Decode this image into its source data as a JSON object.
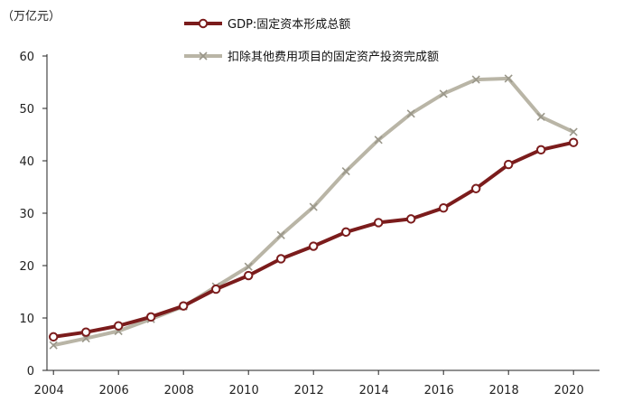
{
  "chart_data": {
    "type": "line",
    "unit_label": "（万亿元）",
    "x": [
      2004,
      2005,
      2006,
      2007,
      2008,
      2009,
      2010,
      2011,
      2012,
      2013,
      2014,
      2015,
      2016,
      2017,
      2018,
      2019,
      2020
    ],
    "xticks": [
      "2004",
      "2006",
      "2008",
      "2010",
      "2012",
      "2014",
      "2016",
      "2018",
      "2020"
    ],
    "ylim": [
      0,
      60
    ],
    "yticks": [
      "0",
      "10",
      "20",
      "30",
      "40",
      "50",
      "60"
    ],
    "series": [
      {
        "name": "GDP:固定资本形成总额",
        "color": "#7b1c1c",
        "marker": "circle",
        "values": [
          6.4,
          7.3,
          8.5,
          10.2,
          12.3,
          15.5,
          18.1,
          21.3,
          23.7,
          26.4,
          28.2,
          28.9,
          31.0,
          34.7,
          39.3,
          42.1,
          43.5
        ]
      },
      {
        "name": "扣除其他费用项目的固定资产投资完成额",
        "color": "#b9b5a6",
        "marker": "x",
        "values": [
          4.8,
          6.1,
          7.5,
          9.8,
          12.2,
          16.0,
          19.8,
          25.8,
          31.2,
          38.0,
          44.0,
          49.0,
          52.8,
          55.5,
          55.7,
          48.4,
          45.5
        ]
      }
    ],
    "grid": false,
    "legend_position": "top-center"
  }
}
